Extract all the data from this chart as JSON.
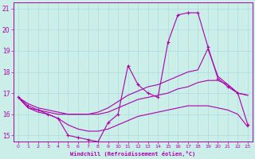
{
  "xlabel": "Windchill (Refroidissement éolien,°C)",
  "background_color": "#cceee8",
  "grid_color": "#aadddd",
  "line_color": "#aa00aa",
  "xlim": [
    -0.5,
    23.5
  ],
  "ylim": [
    14.7,
    21.3
  ],
  "xticks": [
    0,
    1,
    2,
    3,
    4,
    5,
    6,
    7,
    8,
    9,
    10,
    11,
    12,
    13,
    14,
    15,
    16,
    17,
    18,
    19,
    20,
    21,
    22,
    23
  ],
  "yticks": [
    15,
    16,
    17,
    18,
    19,
    20,
    21
  ],
  "line1_x": [
    0,
    1,
    2,
    3,
    4,
    5,
    6,
    7,
    8,
    9,
    10,
    11,
    12,
    13,
    14,
    15,
    16,
    17,
    18,
    19,
    20,
    21,
    22,
    23
  ],
  "line1_y": [
    16.8,
    16.4,
    16.2,
    16.0,
    15.8,
    15.0,
    14.9,
    14.8,
    14.7,
    15.6,
    16.0,
    18.3,
    17.4,
    17.0,
    16.8,
    19.4,
    20.7,
    20.8,
    20.8,
    19.2,
    17.7,
    17.3,
    17.0,
    15.5
  ],
  "line2_x": [
    0,
    1,
    2,
    3,
    4,
    5,
    6,
    7,
    8,
    9,
    10,
    11,
    12,
    13,
    14,
    15,
    16,
    17,
    18,
    19,
    20,
    21,
    22,
    23
  ],
  "line2_y": [
    16.8,
    16.5,
    16.3,
    16.2,
    16.1,
    16.0,
    16.0,
    16.0,
    16.1,
    16.3,
    16.6,
    16.9,
    17.1,
    17.3,
    17.4,
    17.6,
    17.8,
    18.0,
    18.1,
    19.1,
    17.8,
    17.4,
    17.0,
    16.9
  ],
  "line3_x": [
    0,
    1,
    2,
    3,
    4,
    5,
    6,
    7,
    8,
    9,
    10,
    11,
    12,
    13,
    14,
    15,
    16,
    17,
    18,
    19,
    20,
    21,
    22,
    23
  ],
  "line3_y": [
    16.8,
    16.3,
    16.1,
    16.0,
    15.8,
    15.5,
    15.3,
    15.2,
    15.2,
    15.3,
    15.5,
    15.7,
    15.9,
    16.0,
    16.1,
    16.2,
    16.3,
    16.4,
    16.4,
    16.4,
    16.3,
    16.2,
    16.0,
    15.4
  ],
  "line4_x": [
    0,
    1,
    2,
    3,
    4,
    5,
    6,
    7,
    8,
    9,
    10,
    11,
    12,
    13,
    14,
    15,
    16,
    17,
    18,
    19,
    20,
    21,
    22,
    23
  ],
  "line4_y": [
    16.8,
    16.3,
    16.2,
    16.1,
    16.0,
    16.0,
    16.0,
    16.0,
    16.0,
    16.1,
    16.3,
    16.5,
    16.7,
    16.8,
    16.9,
    17.0,
    17.2,
    17.3,
    17.5,
    17.6,
    17.6,
    17.4,
    17.0,
    16.9
  ]
}
